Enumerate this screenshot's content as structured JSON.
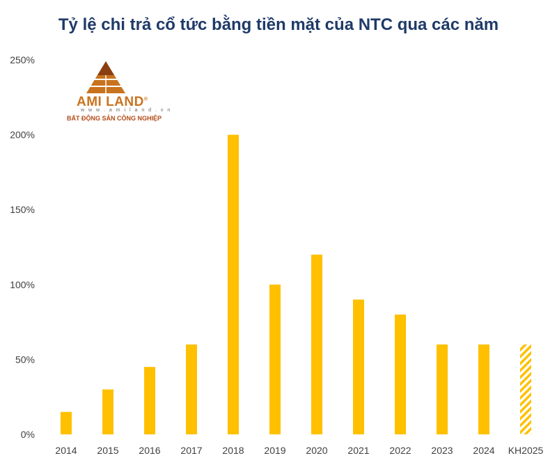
{
  "chart_data": {
    "type": "bar",
    "title": "Tỷ lệ chi trả cổ tức bằng tiền mặt của NTC qua các năm",
    "categories": [
      "2014",
      "2015",
      "2016",
      "2017",
      "2018",
      "2019",
      "2020",
      "2021",
      "2022",
      "2023",
      "2024",
      "KH2025"
    ],
    "values": [
      15,
      30,
      45,
      60,
      200,
      100,
      120,
      90,
      80,
      60,
      60,
      60
    ],
    "hatched": [
      "KH2025"
    ],
    "ylim": [
      0,
      250
    ],
    "yticks": [
      0,
      50,
      100,
      150,
      200,
      250
    ],
    "ytick_labels": [
      "0%",
      "50%",
      "100%",
      "150%",
      "200%",
      "250%"
    ],
    "xlabel": "",
    "ylabel": "",
    "grid": false,
    "bar_color": "#ffc000"
  },
  "logo": {
    "name": "AMI LAND",
    "registered": "®",
    "url": "w w w . a m i l a n d . v n",
    "tagline": "BẤT ĐỘNG SẢN CÔNG NGHIỆP"
  }
}
